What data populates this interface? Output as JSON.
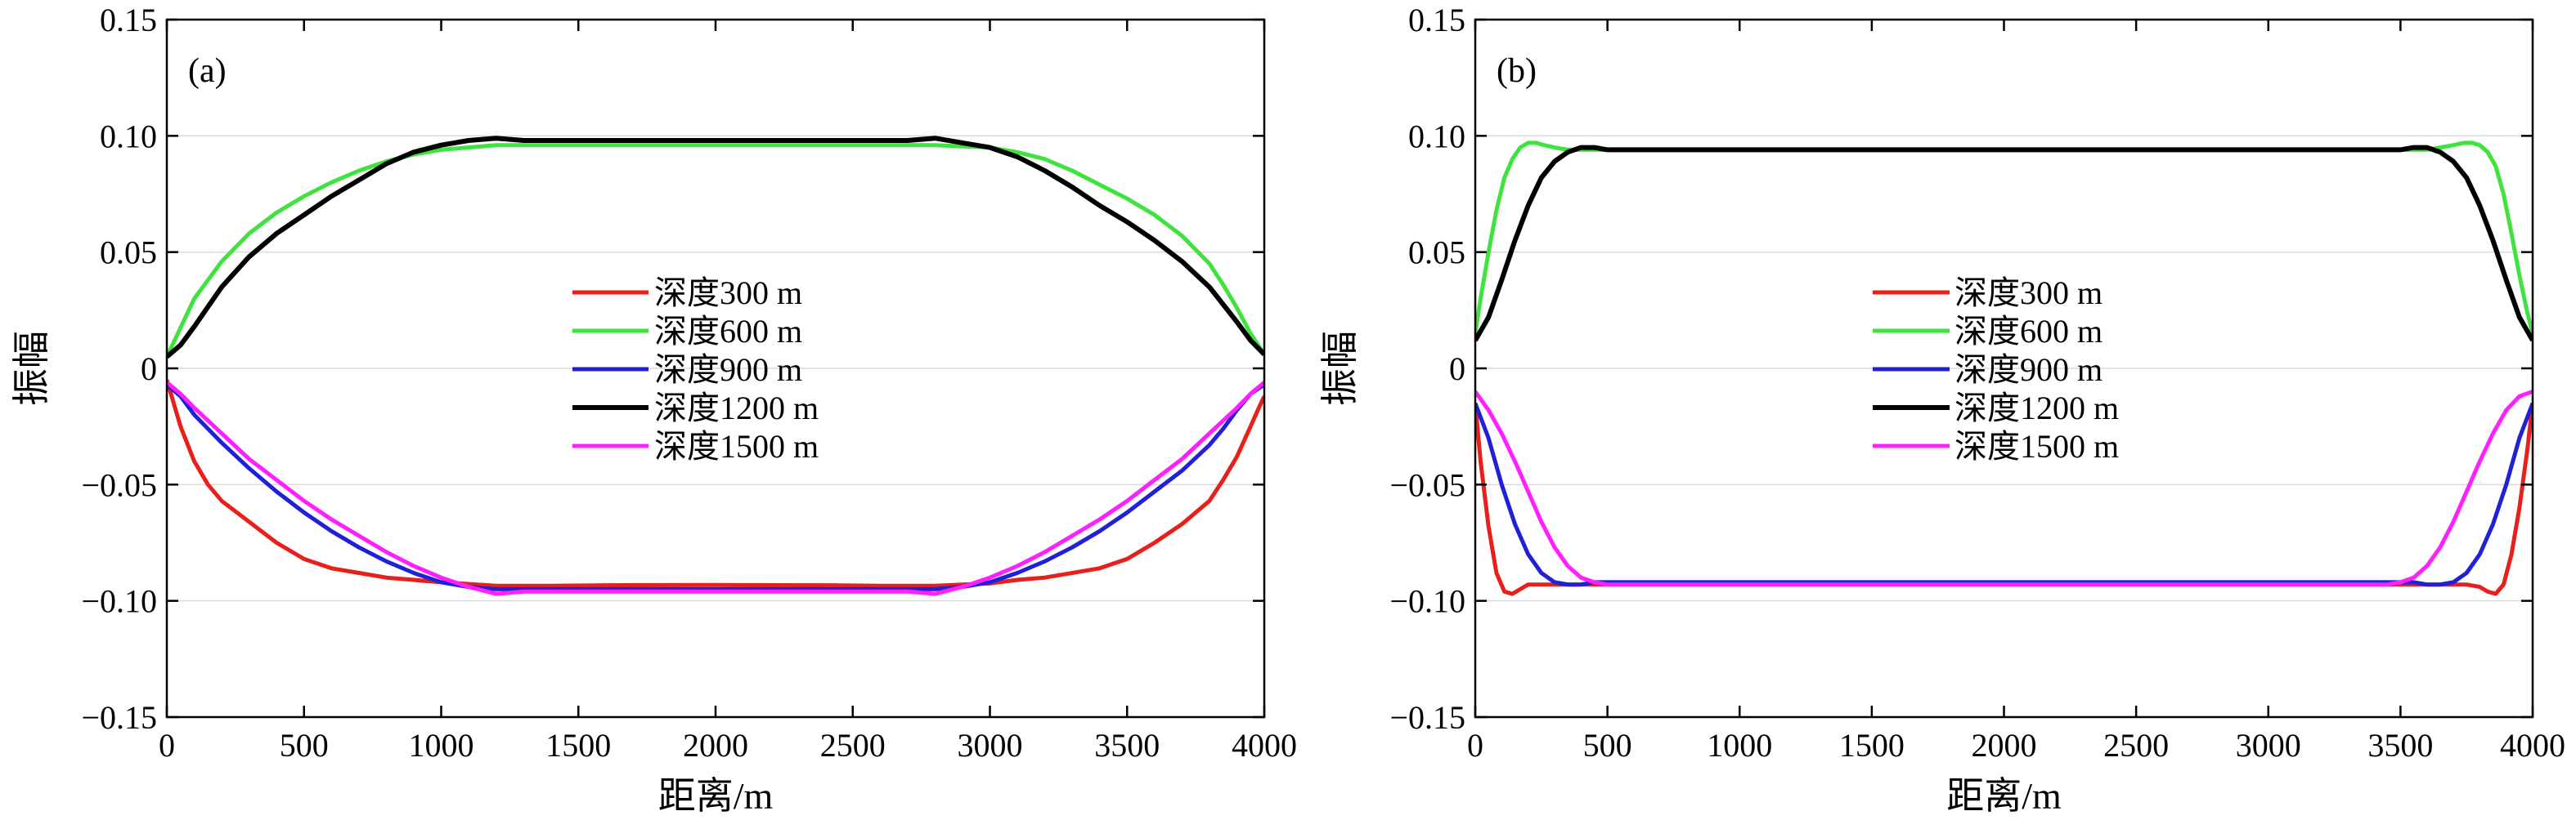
{
  "chart_data": [
    {
      "type": "line",
      "panel_label": "(a)",
      "xlabel": "距离/m",
      "ylabel": "振幅",
      "xlim": [
        0,
        4000
      ],
      "ylim": [
        -0.15,
        0.15
      ],
      "xticks": [
        0,
        500,
        1000,
        1500,
        2000,
        2500,
        3000,
        3500,
        4000
      ],
      "yticks": [
        0.15,
        0.1,
        0.05,
        0,
        -0.05,
        -0.1,
        -0.15
      ],
      "ytick_labels": [
        "0.15",
        "0.10",
        "0.05",
        "0",
        "−0.05",
        "−0.10",
        "−0.15"
      ],
      "grid": "horizontal",
      "legend_position": "center",
      "series": [
        {
          "name": "深度300 m",
          "color": "#e8201c",
          "x": [
            0,
            50,
            100,
            150,
            200,
            300,
            400,
            500,
            600,
            700,
            800,
            900,
            1000,
            1200,
            1400,
            1600,
            2000,
            2400,
            2600,
            2800,
            3000,
            3100,
            3200,
            3400,
            3500,
            3600,
            3700,
            3800,
            3850,
            3900,
            3950,
            3980,
            4000
          ],
          "y": [
            -0.005,
            -0.025,
            -0.04,
            -0.05,
            -0.057,
            -0.066,
            -0.075,
            -0.082,
            -0.086,
            -0.088,
            -0.09,
            -0.091,
            -0.092,
            -0.0935,
            -0.0935,
            -0.0933,
            -0.0932,
            -0.0933,
            -0.0935,
            -0.0935,
            -0.0925,
            -0.091,
            -0.09,
            -0.086,
            -0.082,
            -0.075,
            -0.067,
            -0.057,
            -0.048,
            -0.038,
            -0.025,
            -0.017,
            -0.012
          ]
        },
        {
          "name": "深度600 m",
          "color": "#3fe23f",
          "x": [
            0,
            100,
            200,
            300,
            400,
            500,
            600,
            700,
            800,
            900,
            1000,
            1200,
            1500,
            2000,
            2500,
            2800,
            3000,
            3100,
            3200,
            3300,
            3400,
            3500,
            3600,
            3700,
            3800,
            3850,
            3900,
            3950,
            4000
          ],
          "y": [
            0.005,
            0.03,
            0.046,
            0.058,
            0.067,
            0.074,
            0.08,
            0.085,
            0.089,
            0.092,
            0.094,
            0.096,
            0.096,
            0.096,
            0.096,
            0.096,
            0.095,
            0.093,
            0.09,
            0.085,
            0.079,
            0.073,
            0.066,
            0.057,
            0.045,
            0.036,
            0.026,
            0.015,
            0.006
          ]
        },
        {
          "name": "深度900 m",
          "color": "#2020d8",
          "x": [
            0,
            50,
            100,
            200,
            300,
            400,
            500,
            600,
            700,
            800,
            900,
            1000,
            1100,
            1200,
            1400,
            2000,
            2600,
            2800,
            2900,
            3000,
            3100,
            3200,
            3300,
            3400,
            3500,
            3600,
            3700,
            3800,
            3850,
            3900,
            3950,
            4000
          ],
          "y": [
            -0.007,
            -0.012,
            -0.02,
            -0.032,
            -0.043,
            -0.053,
            -0.062,
            -0.07,
            -0.077,
            -0.083,
            -0.088,
            -0.092,
            -0.094,
            -0.095,
            -0.095,
            -0.095,
            -0.095,
            -0.095,
            -0.094,
            -0.092,
            -0.088,
            -0.083,
            -0.077,
            -0.07,
            -0.062,
            -0.053,
            -0.044,
            -0.033,
            -0.026,
            -0.018,
            -0.011,
            -0.007
          ]
        },
        {
          "name": "深度1200 m",
          "color": "#000000",
          "x": [
            0,
            50,
            100,
            200,
            300,
            400,
            500,
            600,
            700,
            800,
            900,
            1000,
            1100,
            1200,
            1300,
            1400,
            2000,
            2600,
            2700,
            2800,
            2900,
            3000,
            3100,
            3200,
            3300,
            3400,
            3500,
            3600,
            3700,
            3800,
            3900,
            3950,
            4000
          ],
          "y": [
            0.005,
            0.01,
            0.018,
            0.035,
            0.048,
            0.058,
            0.066,
            0.074,
            0.081,
            0.088,
            0.093,
            0.096,
            0.098,
            0.099,
            0.098,
            0.098,
            0.098,
            0.098,
            0.098,
            0.099,
            0.097,
            0.095,
            0.091,
            0.085,
            0.078,
            0.07,
            0.063,
            0.055,
            0.046,
            0.035,
            0.02,
            0.012,
            0.006
          ]
        },
        {
          "name": "深度1500 m",
          "color": "#ff20ff",
          "x": [
            0,
            50,
            100,
            200,
            300,
            400,
            500,
            600,
            700,
            800,
            900,
            1000,
            1100,
            1200,
            1300,
            1400,
            2000,
            2600,
            2700,
            2800,
            2900,
            3000,
            3100,
            3200,
            3300,
            3400,
            3500,
            3600,
            3700,
            3800,
            3900,
            3950,
            4000
          ],
          "y": [
            -0.006,
            -0.011,
            -0.017,
            -0.028,
            -0.039,
            -0.048,
            -0.057,
            -0.065,
            -0.072,
            -0.079,
            -0.085,
            -0.09,
            -0.094,
            -0.097,
            -0.096,
            -0.096,
            -0.096,
            -0.096,
            -0.096,
            -0.097,
            -0.094,
            -0.09,
            -0.085,
            -0.079,
            -0.072,
            -0.065,
            -0.057,
            -0.048,
            -0.039,
            -0.028,
            -0.017,
            -0.011,
            -0.006
          ]
        }
      ]
    },
    {
      "type": "line",
      "panel_label": "(b)",
      "xlabel": "距离/m",
      "ylabel": "振幅",
      "xlim": [
        0,
        4000
      ],
      "ylim": [
        -0.15,
        0.15
      ],
      "xticks": [
        0,
        500,
        1000,
        1500,
        2000,
        2500,
        3000,
        3500,
        4000
      ],
      "yticks": [
        0.15,
        0.1,
        0.05,
        0,
        -0.05,
        -0.1,
        -0.15
      ],
      "ytick_labels": [
        "0.15",
        "0.10",
        "0.05",
        "0",
        "−0.05",
        "−0.10",
        "−0.15"
      ],
      "grid": "horizontal",
      "legend_position": "center",
      "series": [
        {
          "name": "深度300 m",
          "color": "#e8201c",
          "x": [
            0,
            20,
            50,
            80,
            110,
            140,
            170,
            200,
            250,
            300,
            500,
            2000,
            3500,
            3700,
            3750,
            3800,
            3830,
            3860,
            3890,
            3920,
            3950,
            3980,
            4000
          ],
          "y": [
            -0.015,
            -0.04,
            -0.068,
            -0.088,
            -0.096,
            -0.097,
            -0.095,
            -0.093,
            -0.093,
            -0.093,
            -0.093,
            -0.093,
            -0.093,
            -0.093,
            -0.093,
            -0.094,
            -0.096,
            -0.097,
            -0.093,
            -0.08,
            -0.06,
            -0.035,
            -0.015
          ]
        },
        {
          "name": "深度600 m",
          "color": "#3fe23f",
          "x": [
            0,
            20,
            50,
            80,
            110,
            140,
            170,
            200,
            230,
            260,
            300,
            350,
            400,
            500,
            2000,
            3500,
            3600,
            3650,
            3700,
            3740,
            3770,
            3800,
            3830,
            3860,
            3890,
            3920,
            3950,
            3980,
            4000
          ],
          "y": [
            0.015,
            0.03,
            0.05,
            0.068,
            0.082,
            0.09,
            0.095,
            0.097,
            0.097,
            0.096,
            0.095,
            0.094,
            0.094,
            0.094,
            0.094,
            0.094,
            0.094,
            0.095,
            0.096,
            0.097,
            0.097,
            0.096,
            0.093,
            0.087,
            0.075,
            0.058,
            0.04,
            0.024,
            0.015
          ]
        },
        {
          "name": "深度900 m",
          "color": "#2020d8",
          "x": [
            0,
            50,
            100,
            150,
            200,
            250,
            300,
            350,
            400,
            450,
            500,
            2000,
            3500,
            3550,
            3600,
            3650,
            3700,
            3750,
            3800,
            3850,
            3900,
            3950,
            4000
          ],
          "y": [
            -0.015,
            -0.03,
            -0.05,
            -0.067,
            -0.08,
            -0.088,
            -0.092,
            -0.093,
            -0.093,
            -0.092,
            -0.092,
            -0.092,
            -0.092,
            -0.092,
            -0.093,
            -0.093,
            -0.092,
            -0.088,
            -0.08,
            -0.067,
            -0.05,
            -0.03,
            -0.015
          ]
        },
        {
          "name": "深度1200 m",
          "color": "#000000",
          "x": [
            0,
            50,
            100,
            150,
            200,
            250,
            300,
            350,
            400,
            450,
            500,
            600,
            2000,
            3400,
            3500,
            3550,
            3600,
            3650,
            3700,
            3750,
            3800,
            3850,
            3900,
            3950,
            4000
          ],
          "y": [
            0.012,
            0.022,
            0.038,
            0.055,
            0.07,
            0.082,
            0.089,
            0.093,
            0.095,
            0.095,
            0.094,
            0.094,
            0.094,
            0.094,
            0.094,
            0.095,
            0.095,
            0.093,
            0.089,
            0.082,
            0.07,
            0.055,
            0.038,
            0.022,
            0.012
          ]
        },
        {
          "name": "深度1500 m",
          "color": "#ff20ff",
          "x": [
            0,
            50,
            100,
            150,
            200,
            250,
            300,
            350,
            400,
            450,
            500,
            550,
            600,
            2000,
            3400,
            3450,
            3500,
            3550,
            3600,
            3650,
            3700,
            3750,
            3800,
            3850,
            3900,
            3950,
            4000
          ],
          "y": [
            -0.01,
            -0.018,
            -0.028,
            -0.04,
            -0.053,
            -0.066,
            -0.077,
            -0.085,
            -0.09,
            -0.092,
            -0.093,
            -0.093,
            -0.093,
            -0.093,
            -0.093,
            -0.093,
            -0.092,
            -0.09,
            -0.085,
            -0.077,
            -0.066,
            -0.053,
            -0.04,
            -0.028,
            -0.018,
            -0.012,
            -0.01
          ]
        }
      ]
    }
  ]
}
